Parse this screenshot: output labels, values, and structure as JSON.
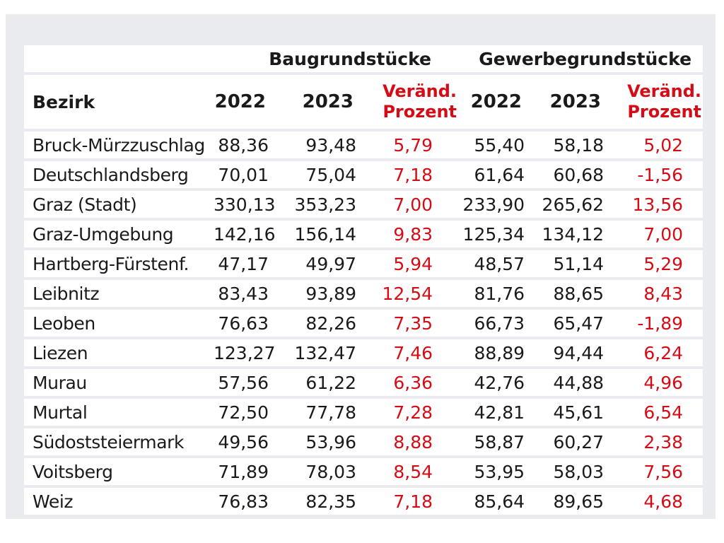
{
  "chart_data": {
    "type": "table",
    "title": "",
    "group_headers": {
      "bau": "Baugrundstücke",
      "gew": "Gewerbegrundstücke"
    },
    "columns": {
      "district": "Bezirk",
      "bau_2022": "2022",
      "bau_2023": "2023",
      "bau_change_line1": "Veränd.",
      "bau_change_line2": "Prozent",
      "gew_2022": "2022",
      "gew_2023": "2023",
      "gew_change_line1": "Veränd.",
      "gew_change_line2": "Prozent"
    },
    "rows": [
      {
        "district": "Bruck-Mürzzuschlag",
        "bau_2022": "88,36",
        "bau_2023": "93,48",
        "bau_change": "5,79",
        "gew_2022": "55,40",
        "gew_2023": "58,18",
        "gew_change": "5,02"
      },
      {
        "district": "Deutschlandsberg",
        "bau_2022": "70,01",
        "bau_2023": "75,04",
        "bau_change": "7,18",
        "gew_2022": "61,64",
        "gew_2023": "60,68",
        "gew_change": "-1,56"
      },
      {
        "district": "Graz (Stadt)",
        "bau_2022": "330,13",
        "bau_2023": "353,23",
        "bau_change": "7,00",
        "gew_2022": "233,90",
        "gew_2023": "265,62",
        "gew_change": "13,56"
      },
      {
        "district": "Graz-Umgebung",
        "bau_2022": "142,16",
        "bau_2023": "156,14",
        "bau_change": "9,83",
        "gew_2022": "125,34",
        "gew_2023": "134,12",
        "gew_change": "7,00"
      },
      {
        "district": "Hartberg-Fürstenf.",
        "bau_2022": "47,17",
        "bau_2023": "49,97",
        "bau_change": "5,94",
        "gew_2022": "48,57",
        "gew_2023": "51,14",
        "gew_change": "5,29"
      },
      {
        "district": "Leibnitz",
        "bau_2022": "83,43",
        "bau_2023": "93,89",
        "bau_change": "12,54",
        "gew_2022": "81,76",
        "gew_2023": "88,65",
        "gew_change": "8,43"
      },
      {
        "district": "Leoben",
        "bau_2022": "76,63",
        "bau_2023": "82,26",
        "bau_change": "7,35",
        "gew_2022": "66,73",
        "gew_2023": "65,47",
        "gew_change": "-1,89"
      },
      {
        "district": "Liezen",
        "bau_2022": "123,27",
        "bau_2023": "132,47",
        "bau_change": "7,46",
        "gew_2022": "88,89",
        "gew_2023": "94,44",
        "gew_change": "6,24"
      },
      {
        "district": "Murau",
        "bau_2022": "57,56",
        "bau_2023": "61,22",
        "bau_change": "6,36",
        "gew_2022": "42,76",
        "gew_2023": "44,88",
        "gew_change": "4,96"
      },
      {
        "district": "Murtal",
        "bau_2022": "72,50",
        "bau_2023": "77,78",
        "bau_change": "7,28",
        "gew_2022": "42,81",
        "gew_2023": "45,61",
        "gew_change": "6,54"
      },
      {
        "district": "Südoststeiermark",
        "bau_2022": "49,56",
        "bau_2023": "53,96",
        "bau_change": "8,88",
        "gew_2022": "58,87",
        "gew_2023": "60,27",
        "gew_change": "2,38"
      },
      {
        "district": "Voitsberg",
        "bau_2022": "71,89",
        "bau_2023": "78,03",
        "bau_change": "8,54",
        "gew_2022": "53,95",
        "gew_2023": "58,03",
        "gew_change": "7,56"
      },
      {
        "district": "Weiz",
        "bau_2022": "76,83",
        "bau_2023": "82,35",
        "bau_change": "7,18",
        "gew_2022": "85,64",
        "gew_2023": "89,65",
        "gew_change": "4,68"
      }
    ],
    "colors": {
      "text": "#1a1a1a",
      "accent_red": "#d50c16",
      "row_background": "#ffffff",
      "frame_background": "#e9ebee"
    }
  }
}
